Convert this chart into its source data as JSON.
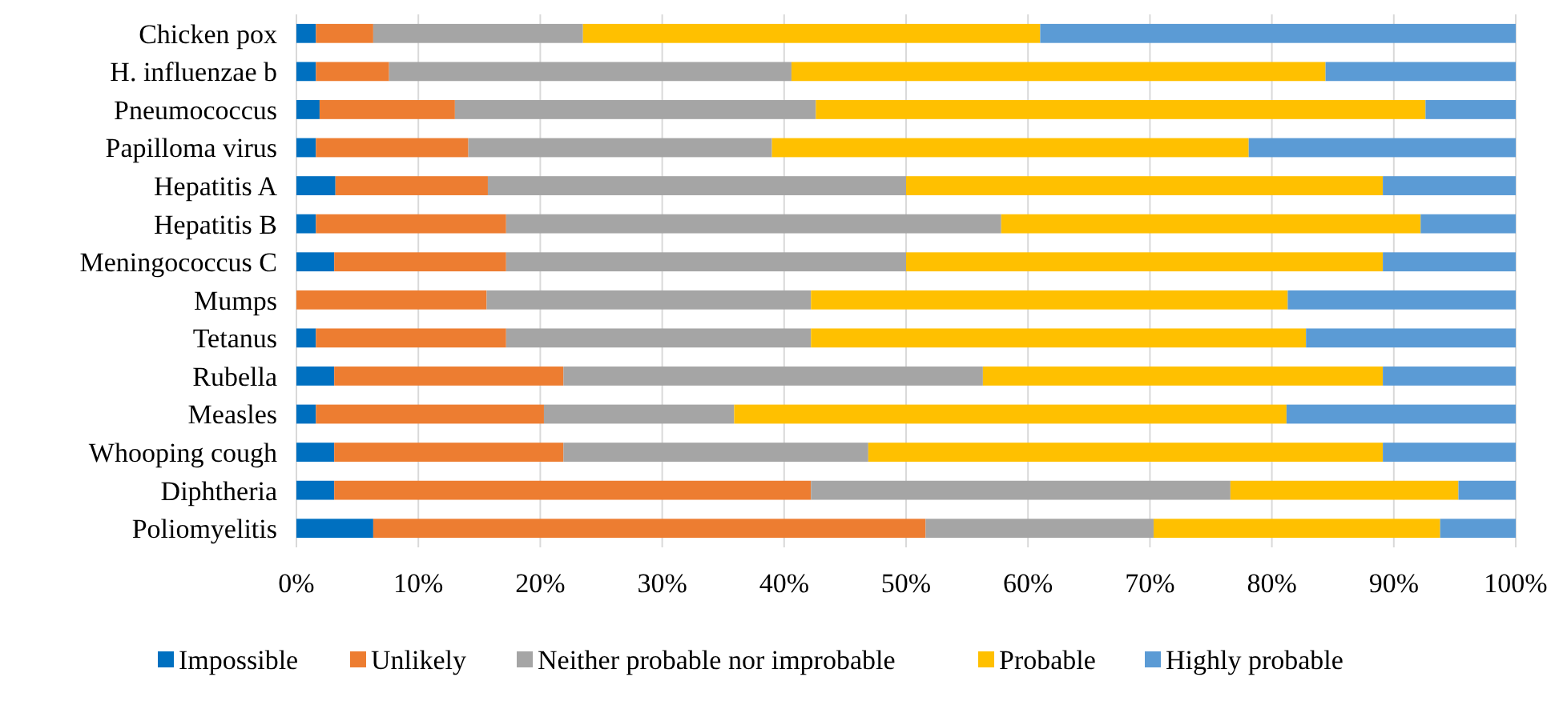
{
  "chart_data": {
    "type": "bar",
    "orientation": "horizontal",
    "stacked": true,
    "categories": [
      "Chicken pox",
      "H. influenzae b",
      "Pneumococcus",
      "Papilloma virus",
      "Hepatitis A",
      "Hepatitis B",
      "Meningococcus C",
      "Mumps",
      "Tetanus",
      "Rubella",
      "Measles",
      "Whooping cough",
      "Diphtheria",
      "Poliomyelitis"
    ],
    "series": [
      {
        "name": "Impossible",
        "color": "#0070c0",
        "values": [
          1.6,
          1.6,
          1.9,
          1.6,
          3.2,
          1.6,
          3.1,
          0,
          1.6,
          3.1,
          1.6,
          3.1,
          3.1,
          6.3
        ]
      },
      {
        "name": "Unlikely",
        "color": "#ed7d31",
        "values": [
          4.7,
          6.0,
          11.1,
          12.5,
          12.5,
          15.6,
          14.1,
          15.6,
          15.6,
          18.8,
          18.7,
          18.8,
          39.1,
          45.3
        ]
      },
      {
        "name": "Neither probable nor improbable",
        "color": "#a5a5a5",
        "values": [
          17.2,
          33.0,
          29.6,
          24.9,
          34.3,
          40.6,
          32.8,
          26.6,
          25.0,
          34.4,
          15.6,
          25.0,
          34.4,
          18.7
        ]
      },
      {
        "name": "Probable",
        "color": "#ffc000",
        "values": [
          37.5,
          43.8,
          50.0,
          39.1,
          39.1,
          34.4,
          39.1,
          39.1,
          40.6,
          32.8,
          45.3,
          42.2,
          18.7,
          23.5
        ]
      },
      {
        "name": "Highly probable",
        "color": "#5b9bd5",
        "values": [
          39.0,
          15.6,
          7.4,
          21.9,
          10.9,
          7.8,
          10.9,
          18.7,
          17.2,
          10.9,
          18.8,
          10.9,
          4.7,
          6.2
        ]
      }
    ],
    "xlim": [
      0,
      100
    ],
    "xticks": [
      {
        "value": 0,
        "label": "0%"
      },
      {
        "value": 10,
        "label": "10%"
      },
      {
        "value": 20,
        "label": "20%"
      },
      {
        "value": 30,
        "label": "30%"
      },
      {
        "value": 40,
        "label": "40%"
      },
      {
        "value": 50,
        "label": "50%"
      },
      {
        "value": 60,
        "label": "60%"
      },
      {
        "value": 70,
        "label": "70%"
      },
      {
        "value": 80,
        "label": "80%"
      },
      {
        "value": 90,
        "label": "90%"
      },
      {
        "value": 100,
        "label": "100%"
      }
    ],
    "grid": "x",
    "legend": "bottom"
  }
}
